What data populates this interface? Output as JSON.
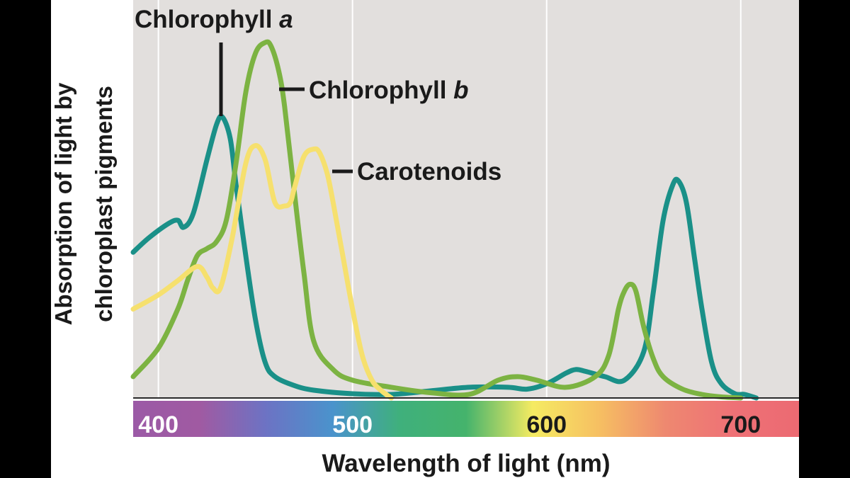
{
  "chart_data": {
    "type": "line",
    "title": "",
    "ylabel_line1": "Absorption of light by",
    "ylabel_line2": "chloroplast pigments",
    "xlabel": "Wavelength of light (nm)",
    "xlim": [
      387,
      730
    ],
    "ylim": [
      0,
      1
    ],
    "x_ticks": [
      "400",
      "500",
      "600",
      "700"
    ],
    "x_tick_values": [
      400,
      500,
      600,
      700
    ],
    "grid": "vertical",
    "series": [
      {
        "name": "Chlorophyll a",
        "name_prefix": "Chlorophyll ",
        "name_suffix": "a",
        "color": "#1a9088",
        "x": [
          387,
          395,
          405,
          410,
          413,
          418,
          425,
          430,
          433,
          437,
          440,
          445,
          450,
          455,
          460,
          470,
          480,
          500,
          520,
          540,
          560,
          580,
          590,
          600,
          610,
          615,
          620,
          630,
          640,
          650,
          655,
          660,
          665,
          668,
          672,
          676,
          680,
          685,
          690,
          697,
          702,
          708
        ],
        "y": [
          0.41,
          0.45,
          0.49,
          0.5,
          0.48,
          0.52,
          0.67,
          0.77,
          0.79,
          0.73,
          0.6,
          0.4,
          0.22,
          0.1,
          0.06,
          0.035,
          0.022,
          0.012,
          0.01,
          0.02,
          0.03,
          0.03,
          0.025,
          0.04,
          0.07,
          0.08,
          0.075,
          0.06,
          0.05,
          0.13,
          0.3,
          0.5,
          0.6,
          0.61,
          0.55,
          0.4,
          0.25,
          0.1,
          0.04,
          0.012,
          0.01,
          0.0
        ]
      },
      {
        "name": "Chlorophyll b",
        "name_prefix": "Chlorophyll ",
        "name_suffix": "b",
        "color": "#7cb342",
        "x": [
          387,
          400,
          410,
          415,
          420,
          425,
          430,
          435,
          440,
          445,
          450,
          455,
          458,
          462,
          465,
          470,
          475,
          480,
          490,
          500,
          520,
          540,
          560,
          575,
          585,
          595,
          610,
          625,
          632,
          637,
          640,
          643,
          646,
          650,
          655,
          660,
          670,
          680,
          690,
          700
        ],
        "y": [
          0.06,
          0.14,
          0.25,
          0.33,
          0.4,
          0.42,
          0.44,
          0.5,
          0.66,
          0.86,
          0.97,
          1.0,
          0.99,
          0.92,
          0.82,
          0.58,
          0.35,
          0.16,
          0.08,
          0.05,
          0.03,
          0.015,
          0.01,
          0.05,
          0.06,
          0.05,
          0.03,
          0.06,
          0.12,
          0.25,
          0.3,
          0.32,
          0.3,
          0.2,
          0.11,
          0.06,
          0.025,
          0.01,
          0.003,
          0.0
        ]
      },
      {
        "name": "Carotenoids",
        "color": "#f6e06e",
        "x": [
          387,
          400,
          410,
          420,
          425,
          428,
          432,
          438,
          445,
          450,
          455,
          460,
          465,
          468,
          470,
          475,
          480,
          483,
          487,
          490,
          495,
          500,
          505,
          510,
          515,
          520
        ],
        "y": [
          0.25,
          0.29,
          0.33,
          0.37,
          0.34,
          0.31,
          0.31,
          0.45,
          0.66,
          0.71,
          0.67,
          0.55,
          0.54,
          0.55,
          0.59,
          0.68,
          0.7,
          0.69,
          0.63,
          0.55,
          0.4,
          0.25,
          0.12,
          0.05,
          0.02,
          0.0
        ]
      }
    ],
    "spectrum_colors": [
      "#9b5aa6",
      "#a05aa2",
      "#6c73c4",
      "#4a93cc",
      "#3fb07c",
      "#45b36c",
      "#f5eb62",
      "#f6bf62",
      "#ee8870",
      "#ee7176",
      "#ec6a72"
    ],
    "background_color": "#e2dfdd"
  }
}
